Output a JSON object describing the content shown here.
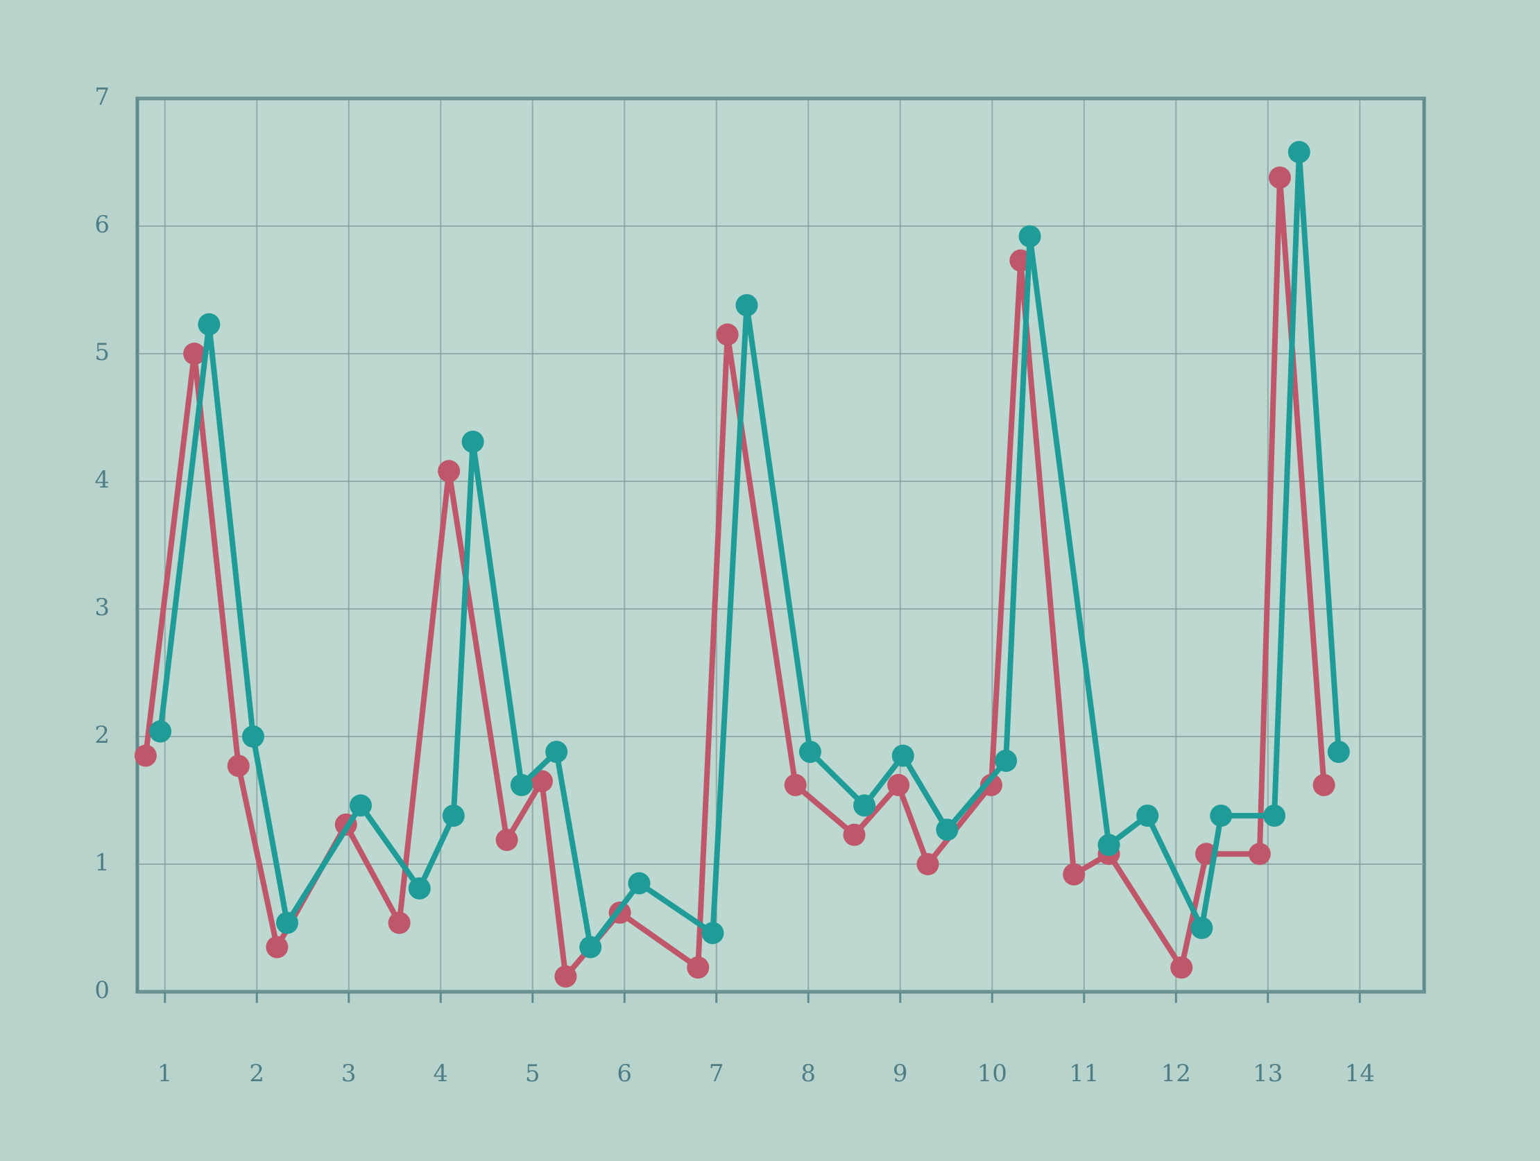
{
  "chart_data": {
    "type": "line",
    "xlim": [
      0.7,
      14.7
    ],
    "xticks": [
      1,
      2,
      3,
      4,
      5,
      6,
      7,
      8,
      9,
      10,
      11,
      12,
      13,
      14
    ],
    "ylim": [
      0,
      7
    ],
    "yticks": [
      0,
      1,
      2,
      3,
      4,
      5,
      6,
      7
    ],
    "grid": true,
    "series": [
      {
        "color": "#c0566a",
        "x": [
          0.79,
          1.32,
          1.8,
          2.22,
          2.97,
          3.55,
          4.09,
          4.72,
          5.1,
          5.36,
          5.95,
          6.8,
          7.12,
          7.86,
          8.5,
          8.98,
          9.3,
          9.99,
          10.31,
          10.89,
          11.27,
          12.06,
          12.33,
          12.91,
          13.13,
          13.61
        ],
        "values": [
          1.85,
          5.0,
          1.77,
          0.35,
          1.31,
          0.54,
          4.08,
          1.19,
          1.65,
          0.12,
          0.62,
          0.19,
          5.15,
          1.62,
          1.23,
          1.62,
          1.0,
          1.62,
          5.73,
          0.92,
          1.08,
          0.19,
          1.08,
          1.08,
          6.38,
          1.62
        ]
      },
      {
        "color": "#1f9c98",
        "x": [
          0.95,
          1.48,
          1.96,
          2.33,
          3.13,
          3.77,
          4.14,
          4.35,
          4.88,
          5.26,
          5.63,
          6.16,
          6.96,
          7.33,
          8.02,
          8.61,
          9.03,
          9.51,
          10.15,
          10.41,
          11.27,
          11.69,
          12.28,
          12.49,
          13.07,
          13.34,
          13.77
        ],
        "values": [
          2.04,
          5.23,
          2.0,
          0.54,
          1.46,
          0.81,
          1.38,
          4.31,
          1.62,
          1.88,
          0.35,
          0.85,
          0.46,
          5.38,
          1.88,
          1.46,
          1.85,
          1.27,
          1.81,
          5.92,
          1.15,
          1.38,
          0.5,
          1.38,
          1.38,
          6.58,
          1.88
        ]
      }
    ]
  }
}
